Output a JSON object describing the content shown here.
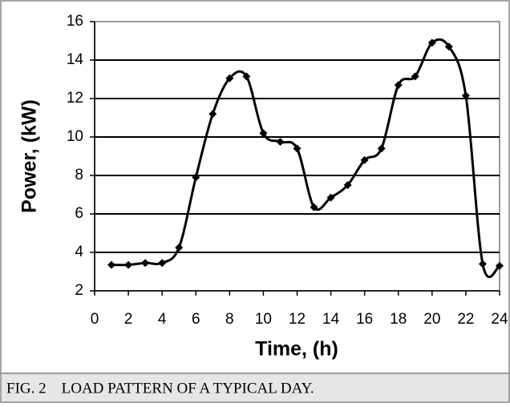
{
  "chart_data": {
    "type": "line",
    "xlabel": "Time, (h)",
    "ylabel": "Power, (kW)",
    "x": [
      1,
      2,
      3,
      4,
      5,
      6,
      7,
      8,
      9,
      10,
      11,
      12,
      13,
      14,
      15,
      16,
      17,
      18,
      19,
      20,
      21,
      22,
      23,
      24
    ],
    "series": [
      {
        "name": "Load",
        "color": "#000000",
        "values": [
          3.35,
          3.35,
          3.45,
          3.45,
          4.25,
          7.9,
          11.2,
          13.05,
          13.15,
          10.2,
          9.75,
          9.4,
          6.35,
          6.85,
          7.5,
          8.8,
          9.4,
          12.7,
          13.15,
          14.9,
          14.7,
          12.15,
          3.4,
          3.3
        ]
      }
    ],
    "xlim": [
      0,
      24
    ],
    "xticks": [
      0,
      2,
      4,
      6,
      8,
      10,
      12,
      14,
      16,
      18,
      20,
      22,
      24
    ],
    "ylim": [
      2,
      16
    ],
    "yticks": [
      2,
      4,
      6,
      8,
      10,
      12,
      14,
      16
    ],
    "grid": true
  },
  "caption": "FIG. 2    LOAD PATTERN OF A TYPICAL DAY."
}
